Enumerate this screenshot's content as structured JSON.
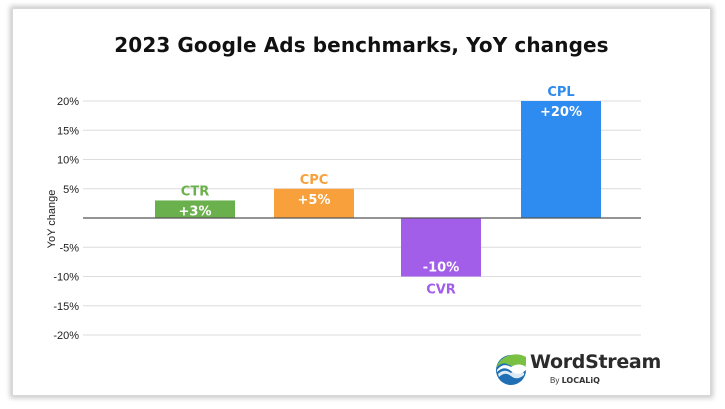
{
  "chart_data": {
    "type": "bar",
    "title": "2023 Google Ads benchmarks, YoY changes",
    "ylabel": "YoY change",
    "xlabel": "",
    "categories": [
      "CTR",
      "CPC",
      "CVR",
      "CPL"
    ],
    "values": [
      3,
      5,
      -10,
      20
    ],
    "value_labels": [
      "+3%",
      "+5%",
      "-10%",
      "+20%"
    ],
    "colors": [
      "#6ab04c",
      "#f7a03c",
      "#a25ee8",
      "#2e8bef"
    ],
    "ylim": [
      -20,
      20
    ],
    "yticks": [
      20,
      15,
      10,
      5,
      -5,
      -10,
      -15,
      -20
    ],
    "ytick_labels": [
      "20%",
      "15%",
      "10%",
      "5%",
      "-5%",
      "-10%",
      "-15%",
      "-20%"
    ],
    "grid": true,
    "legend": "none"
  },
  "branding": {
    "logo_name": "WordStream",
    "logo_sub_prefix": "By",
    "logo_sub_brand": "LOCALiQ",
    "logo_icon": "wordstream-wave-icon"
  }
}
